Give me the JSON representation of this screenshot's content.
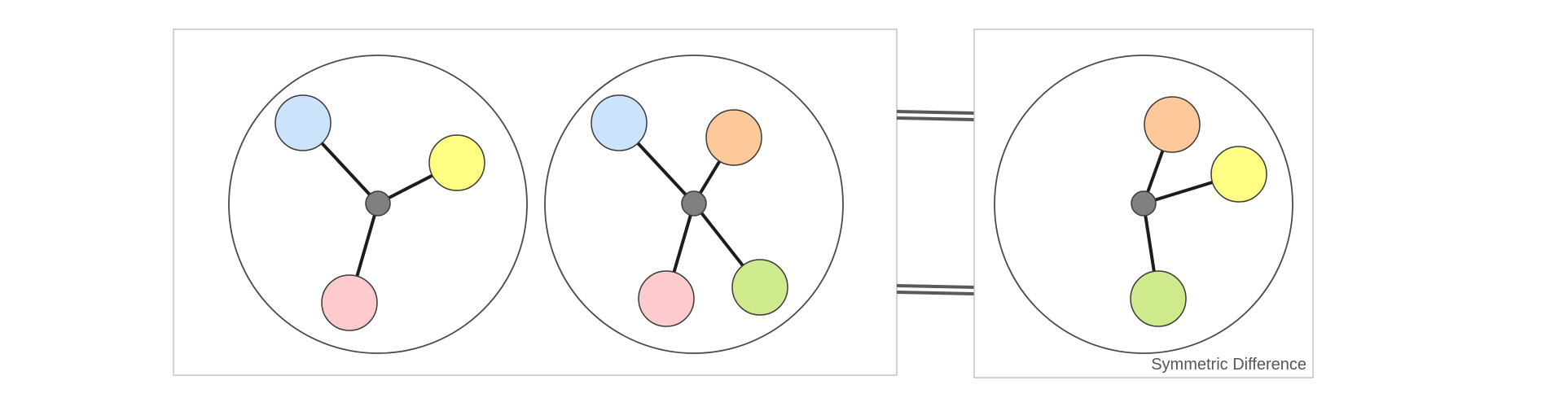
{
  "colors": {
    "blue": "#cce4fb",
    "orange": "#fec99a",
    "yellow": "#fefe85",
    "pink": "#fdcbce",
    "green": "#cfea8c",
    "hub": "#808080",
    "frame": "#b4b4b4",
    "ring": "#4a4a4a",
    "edge": "#1c1c1c",
    "connector": "#5a5a5a"
  },
  "operands": [
    {
      "leaves": [
        "blue",
        "yellow",
        "pink"
      ]
    },
    {
      "leaves": [
        "blue",
        "orange",
        "pink",
        "green"
      ]
    }
  ],
  "result": {
    "caption": "Symmetric Difference",
    "leaves": [
      "orange",
      "yellow",
      "green"
    ]
  }
}
